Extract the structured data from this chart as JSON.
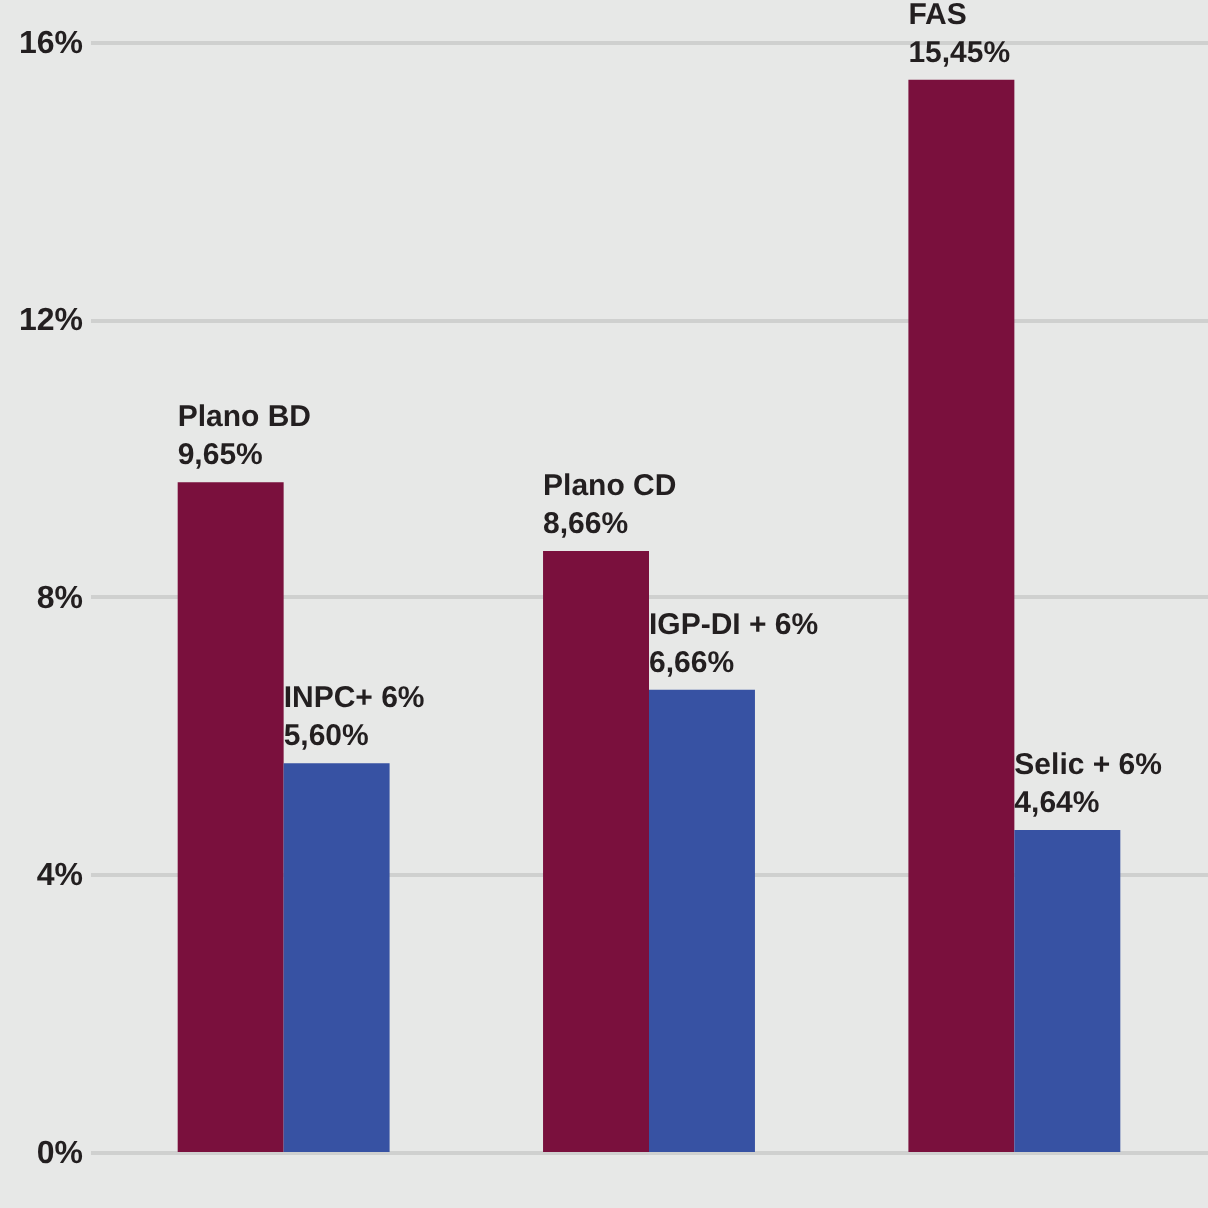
{
  "chart_data": {
    "type": "bar",
    "categories": [
      null,
      null,
      null
    ],
    "series": [
      {
        "color": "#7a103d",
        "values": [
          9.65,
          8.66,
          15.45
        ],
        "value_labels": [
          "9,65%",
          "8,66%",
          "15,45%"
        ]
      },
      {
        "color": "#3752a3",
        "values": [
          5.6,
          6.66,
          4.64
        ],
        "value_labels": [
          "5,60%",
          "6,66%",
          "4,64%"
        ]
      }
    ],
    "annotations": [
      {
        "text": "Plano BD",
        "y": 9.65
      },
      {
        "text": "Plano CD",
        "y": 8.66
      },
      {
        "text": "FAS",
        "y": 15.45
      },
      {
        "text": "INPC+ 6%",
        "y": 5.6
      },
      {
        "text": "IGP-DI + 6%",
        "y": 6.66
      },
      {
        "text": "Selic + 6%",
        "y": 4.64
      }
    ],
    "ylim": [
      0,
      16.6
    ],
    "yticks": [
      {
        "value": 0,
        "label": "0%"
      },
      {
        "value": 4,
        "label": "4%"
      },
      {
        "value": 8,
        "label": "8%"
      },
      {
        "value": 12,
        "label": "12%"
      },
      {
        "value": 16,
        "label": "16%"
      }
    ],
    "grid": "y",
    "tick_labels": "y"
  }
}
